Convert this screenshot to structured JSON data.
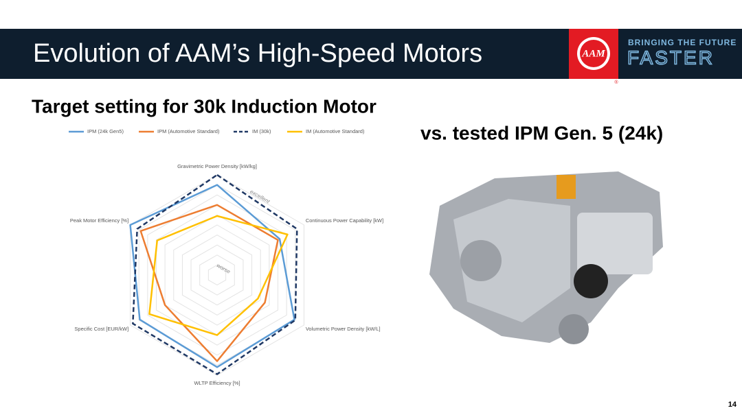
{
  "header": {
    "title": "Evolution of AAM’s High-Speed Motors",
    "logo": "AAM",
    "registered": "®",
    "tagline": [
      "BRINGING THE FUTURE",
      "FASTER"
    ]
  },
  "slide": {
    "subtitle": "Target setting for 30k Induction Motor",
    "caption": "vs. tested IPM Gen. 5 (24k)",
    "page_number": "14"
  },
  "chart_data": {
    "type": "radar",
    "categories": [
      "Gravimetric Power Density  [kW/kg]",
      "Continuous Power Capability  [kW]",
      "Volumetric Power Density  [kW/L]",
      "WLTP Efficiency  [%]",
      "Specific Cost  [EUR/kW]",
      "Peak Motor Efficiency  [%]"
    ],
    "series": [
      {
        "name": "IPM (24k Gen5)",
        "color": "#5b9bd5",
        "dash": false,
        "values": [
          9.0,
          7.2,
          8.9,
          9.2,
          8.9,
          10
        ]
      },
      {
        "name": "IPM (Automotive Standard)",
        "color": "#ed7d31",
        "dash": false,
        "values": [
          7.0,
          7.0,
          5.5,
          8.6,
          6.0,
          8.8
        ]
      },
      {
        "name": "IM (30k)",
        "color": "#1f3864",
        "dash": true,
        "values": [
          10,
          9.2,
          9.0,
          9.9,
          9.7,
          9.2
        ]
      },
      {
        "name": "IM (Automotive Standard)",
        "color": "#ffc000",
        "dash": false,
        "values": [
          5.9,
          8.1,
          4.7,
          6.0,
          7.8,
          6.9
        ]
      }
    ],
    "rlim": [
      0,
      10
    ],
    "rticks": [
      1,
      2,
      3,
      4,
      5,
      6,
      7,
      8,
      9,
      10
    ],
    "grid": true,
    "annotations": [
      "excellent",
      "worse"
    ]
  }
}
